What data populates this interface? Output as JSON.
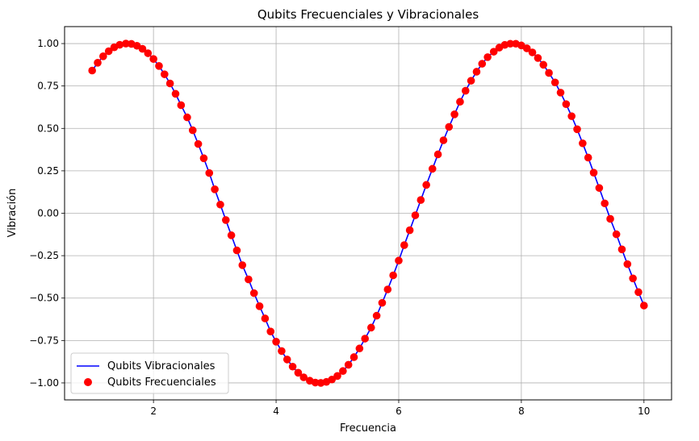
{
  "chart_data": {
    "type": "line+scatter",
    "title": "Qubits Frecuenciales y Vibracionales",
    "xlabel": "Frecuencia",
    "ylabel": "Vibración",
    "xlim": [
      0.55,
      10.45
    ],
    "ylim": [
      -1.1,
      1.1
    ],
    "x_ticks": [
      2,
      4,
      6,
      8,
      10
    ],
    "y_ticks": [
      -1.0,
      -0.75,
      -0.5,
      -0.25,
      0.0,
      0.25,
      0.5,
      0.75,
      1.0
    ],
    "x_tick_labels": [
      "2",
      "4",
      "6",
      "8",
      "10"
    ],
    "y_tick_labels": [
      "−1.00",
      "−0.75",
      "−0.50",
      "−0.25",
      "0.00",
      "0.25",
      "0.50",
      "0.75",
      "1.00"
    ],
    "grid": true,
    "legend_position": "lower-left",
    "x": [
      1.0,
      1.09,
      1.18,
      1.27,
      1.36,
      1.45,
      1.55,
      1.64,
      1.73,
      1.82,
      1.91,
      2.0,
      2.09,
      2.18,
      2.27,
      2.36,
      2.45,
      2.55,
      2.64,
      2.73,
      2.82,
      2.91,
      3.0,
      3.09,
      3.18,
      3.27,
      3.36,
      3.45,
      3.55,
      3.64,
      3.73,
      3.82,
      3.91,
      4.0,
      4.09,
      4.18,
      4.27,
      4.36,
      4.45,
      4.55,
      4.64,
      4.73,
      4.82,
      4.91,
      5.0,
      5.09,
      5.18,
      5.27,
      5.36,
      5.45,
      5.55,
      5.64,
      5.73,
      5.82,
      5.91,
      6.0,
      6.09,
      6.18,
      6.27,
      6.36,
      6.45,
      6.55,
      6.64,
      6.73,
      6.82,
      6.91,
      7.0,
      7.09,
      7.18,
      7.27,
      7.36,
      7.45,
      7.55,
      7.64,
      7.73,
      7.82,
      7.91,
      8.0,
      8.09,
      8.18,
      8.27,
      8.36,
      8.45,
      8.55,
      8.64,
      8.73,
      8.82,
      8.91,
      9.0,
      9.09,
      9.18,
      9.27,
      9.36,
      9.45,
      9.55,
      9.64,
      9.73,
      9.82,
      9.91,
      10.0
    ],
    "series": [
      {
        "name": "Qubits Vibracionales",
        "type": "line",
        "color": "#0000ff",
        "values": [
          0.841,
          0.887,
          0.925,
          0.955,
          0.978,
          0.993,
          1.0,
          0.998,
          0.987,
          0.969,
          0.943,
          0.909,
          0.868,
          0.819,
          0.765,
          0.704,
          0.637,
          0.565,
          0.489,
          0.408,
          0.324,
          0.237,
          0.141,
          0.051,
          -0.04,
          -0.13,
          -0.219,
          -0.306,
          -0.39,
          -0.471,
          -0.548,
          -0.62,
          -0.697,
          -0.757,
          -0.812,
          -0.862,
          -0.904,
          -0.94,
          -0.967,
          -0.987,
          -0.998,
          -1.0,
          -0.994,
          -0.98,
          -0.959,
          -0.93,
          -0.893,
          -0.848,
          -0.797,
          -0.739,
          -0.674,
          -0.604,
          -0.528,
          -0.449,
          -0.366,
          -0.279,
          -0.188,
          -0.1,
          -0.012,
          0.078,
          0.167,
          0.262,
          0.347,
          0.43,
          0.509,
          0.583,
          0.657,
          0.722,
          0.781,
          0.834,
          0.881,
          0.92,
          0.952,
          0.976,
          0.992,
          0.999,
          0.999,
          0.989,
          0.972,
          0.948,
          0.915,
          0.875,
          0.827,
          0.771,
          0.711,
          0.643,
          0.572,
          0.495,
          0.412,
          0.328,
          0.239,
          0.149,
          0.058,
          -0.033,
          -0.124,
          -0.213,
          -0.3,
          -0.384,
          -0.465,
          -0.544
        ]
      },
      {
        "name": "Qubits Frecuenciales",
        "type": "scatter",
        "color": "#ff0000",
        "values": [
          0.841,
          0.887,
          0.925,
          0.955,
          0.978,
          0.993,
          1.0,
          0.998,
          0.987,
          0.969,
          0.943,
          0.909,
          0.868,
          0.819,
          0.765,
          0.704,
          0.637,
          0.565,
          0.489,
          0.408,
          0.324,
          0.237,
          0.141,
          0.051,
          -0.04,
          -0.13,
          -0.219,
          -0.306,
          -0.39,
          -0.471,
          -0.548,
          -0.62,
          -0.697,
          -0.757,
          -0.812,
          -0.862,
          -0.904,
          -0.94,
          -0.967,
          -0.987,
          -0.998,
          -1.0,
          -0.994,
          -0.98,
          -0.959,
          -0.93,
          -0.893,
          -0.848,
          -0.797,
          -0.739,
          -0.674,
          -0.604,
          -0.528,
          -0.449,
          -0.366,
          -0.279,
          -0.188,
          -0.1,
          -0.012,
          0.078,
          0.167,
          0.262,
          0.347,
          0.43,
          0.509,
          0.583,
          0.657,
          0.722,
          0.781,
          0.834,
          0.881,
          0.92,
          0.952,
          0.976,
          0.992,
          0.999,
          0.999,
          0.989,
          0.972,
          0.948,
          0.915,
          0.875,
          0.827,
          0.771,
          0.711,
          0.643,
          0.572,
          0.495,
          0.412,
          0.328,
          0.239,
          0.149,
          0.058,
          -0.033,
          -0.124,
          -0.213,
          -0.3,
          -0.384,
          -0.465,
          -0.544
        ]
      }
    ]
  }
}
